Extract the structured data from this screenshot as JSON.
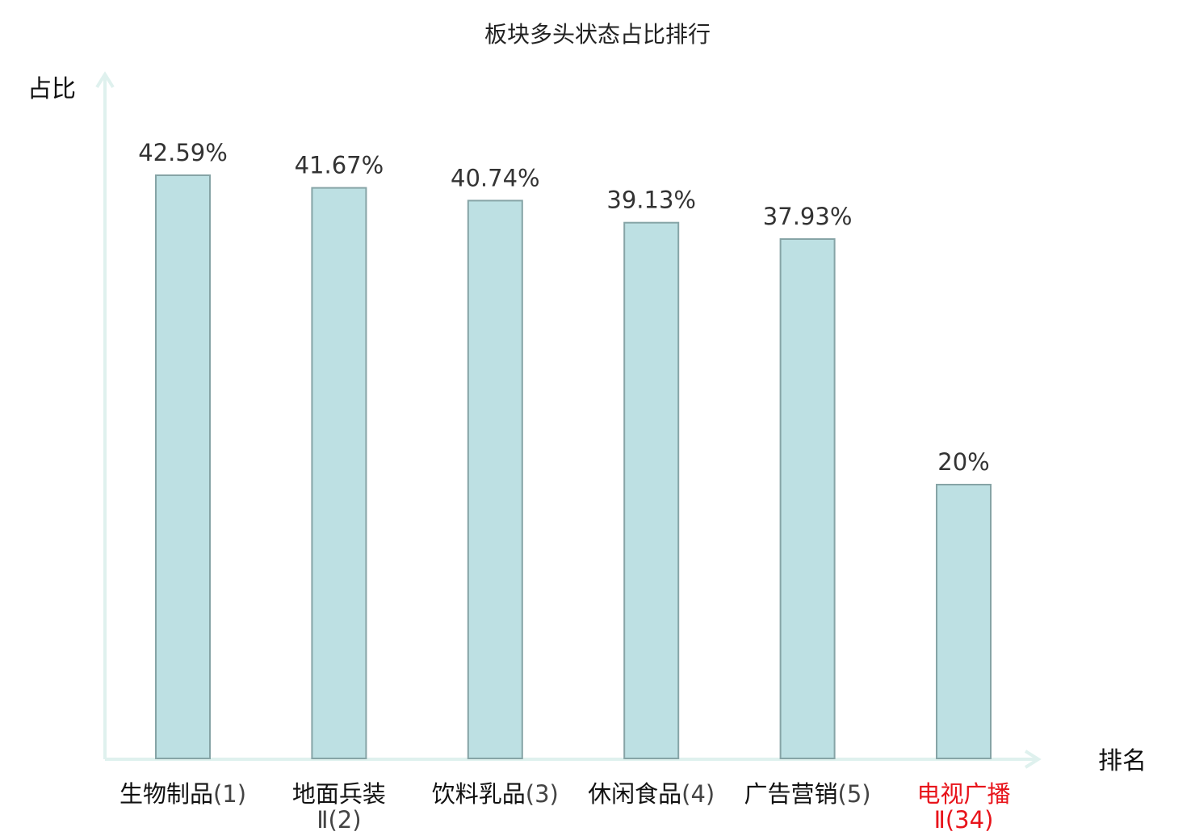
{
  "chart_data": {
    "type": "bar",
    "title": "板块多头状态占比排行",
    "ylabel": "占比",
    "xlabel": "排名",
    "ylim": [
      0,
      50
    ],
    "grid": false,
    "categories": [
      {
        "name": "生物制品",
        "rank": "(1)",
        "highlight": false
      },
      {
        "name": "地面兵装",
        "rank": "Ⅱ(2)",
        "highlight": false
      },
      {
        "name": "饮料乳品",
        "rank": "(3)",
        "highlight": false
      },
      {
        "name": "休闲食品",
        "rank": "(4)",
        "highlight": false
      },
      {
        "name": "广告营销",
        "rank": "(5)",
        "highlight": false
      },
      {
        "name": "电视广播",
        "rank": "Ⅱ(34)",
        "highlight": true
      }
    ],
    "values": [
      42.59,
      41.67,
      40.74,
      39.13,
      37.93,
      20
    ],
    "value_labels": [
      "42.59%",
      "41.67%",
      "40.74%",
      "39.13%",
      "37.93%",
      "20%"
    ]
  },
  "colors": {
    "bar_fill": "#bde0e3",
    "bar_stroke": "#86a4a6",
    "axis": "#dff1ee",
    "highlight": "#e8141b",
    "label": "#111111",
    "rank": "#444444"
  }
}
